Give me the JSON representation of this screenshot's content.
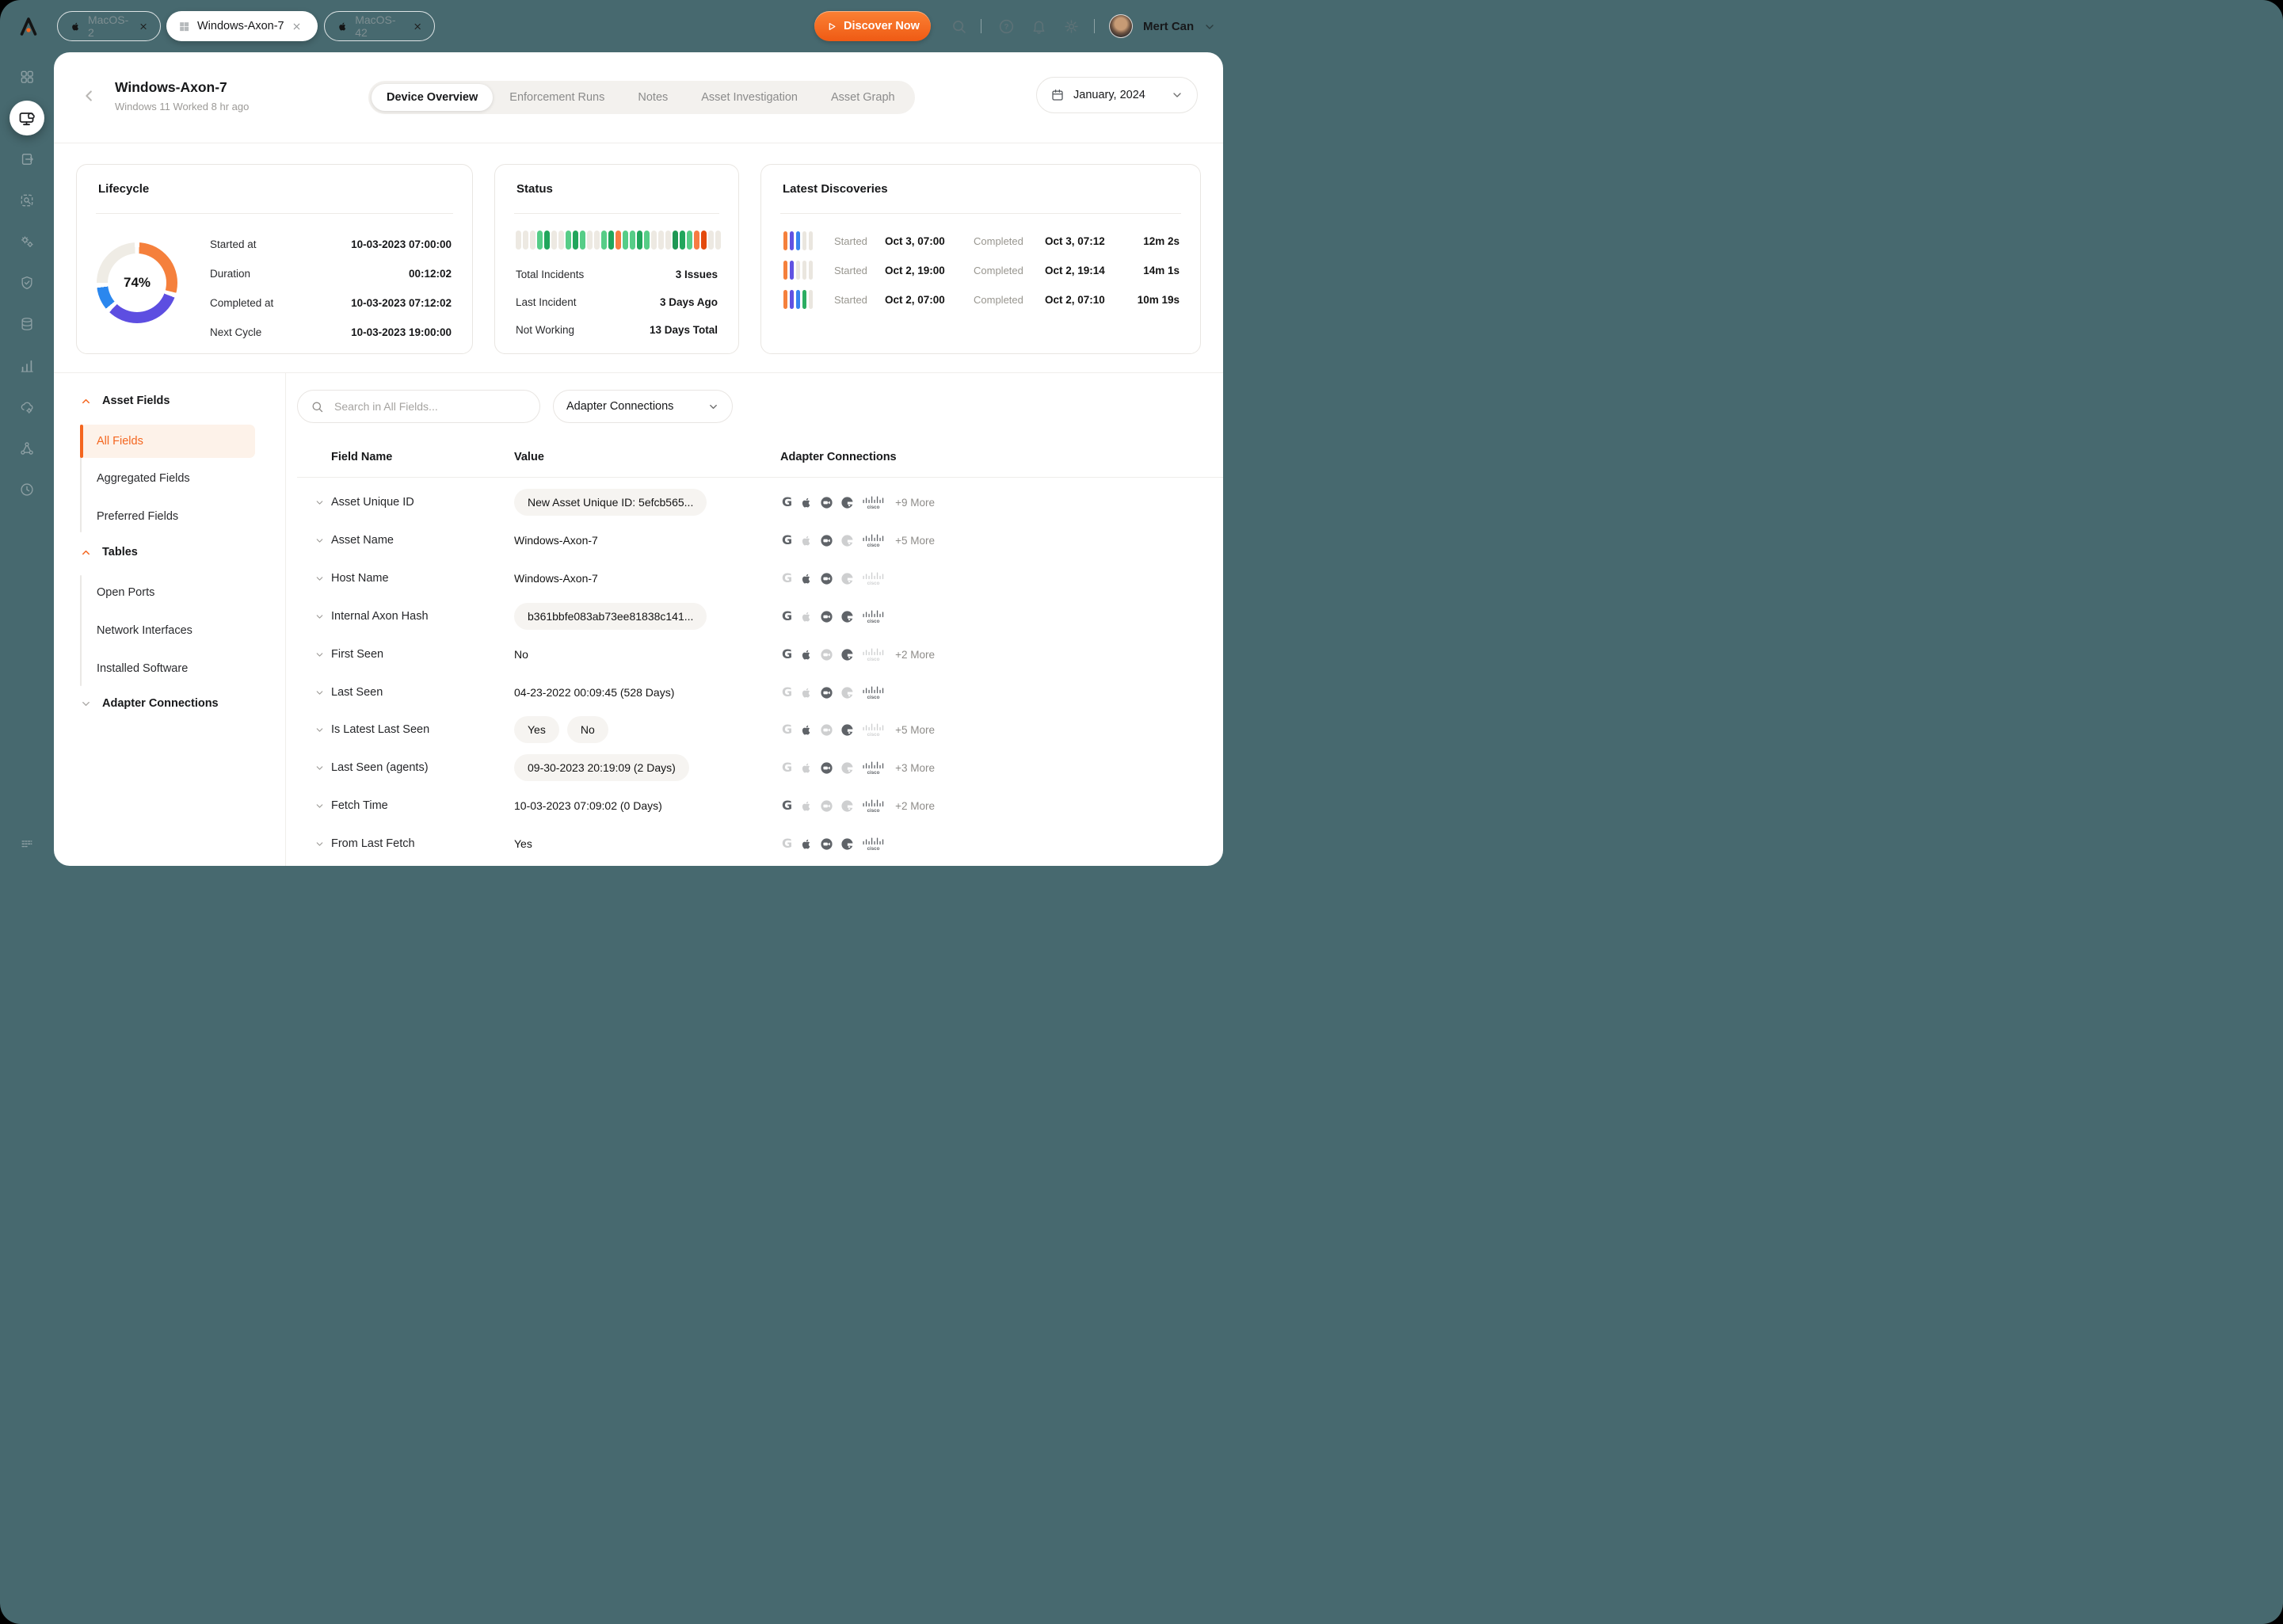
{
  "colors": {
    "accent": "#F4661F",
    "frame_bg": "#47696F",
    "card_bg": "#FFFFFF"
  },
  "topbar": {
    "tabs": [
      {
        "label": "MacOS-2",
        "icon": "apple"
      },
      {
        "label": "Windows-Axon-7",
        "icon": "windows",
        "active": true
      },
      {
        "label": "MacOS-42",
        "icon": "apple"
      }
    ],
    "discover_label": "Discover Now",
    "icons": [
      "search-icon",
      "help-icon",
      "bell-icon",
      "gear-icon"
    ],
    "user_name": "Mert Can"
  },
  "sidebar": {
    "icons": [
      "dashboard-grid",
      "devices-monitor-cloud",
      "enforcement-box-arrow",
      "investigate-box-search",
      "adapters-gears",
      "compliance-shield",
      "data-database",
      "reports-chart",
      "cloud-gear",
      "network-nodes",
      "history-clock",
      "menu-lines"
    ]
  },
  "header": {
    "title": "Windows-Axon-7",
    "subtitle": "Windows 11 Worked 8 hr ago",
    "tabs": [
      {
        "label": "Device Overview",
        "active": true
      },
      {
        "label": "Enforcement Runs"
      },
      {
        "label": "Notes"
      },
      {
        "label": "Asset Investigation"
      },
      {
        "label": "Asset Graph"
      }
    ],
    "date": "January, 2024"
  },
  "cards": {
    "lifecycle": {
      "title": "Lifecycle",
      "percent": "74%",
      "segments": [
        {
          "color": "#F5803C",
          "value": 30
        },
        {
          "color": "#5D4EE1",
          "value": 33
        },
        {
          "color": "#2B87EE",
          "value": 11
        },
        {
          "color": "#EFECE5",
          "value": 26
        }
      ],
      "rows": [
        {
          "label": "Started at",
          "value": "10-03-2023 07:00:00"
        },
        {
          "label": "Duration",
          "value": "00:12:02"
        },
        {
          "label": "Completed at",
          "value": "10-03-2023 07:12:02"
        },
        {
          "label": "Next Cycle",
          "value": "10-03-2023 19:00:00"
        }
      ]
    },
    "status": {
      "title": "Status",
      "palette": {
        "g": "#EDE9E2",
        "lg": "#56CD87",
        "dg": "#21A65C",
        "or": "#F77C43",
        "rd": "#E44A0D",
        "dgd": "#1E9855"
      },
      "bars": [
        "g",
        "g",
        "g",
        "lg",
        "dg",
        "g",
        "g",
        "lg",
        "dg",
        "lg",
        "g",
        "g",
        "lg",
        "dg",
        "or",
        "lg",
        "lg",
        "dg",
        "lg",
        "g",
        "g",
        "g",
        "dgd",
        "dg",
        "lg",
        "or",
        "rd",
        "g",
        "g"
      ],
      "rows": [
        {
          "label": "Total Incidents",
          "value": "3 Issues"
        },
        {
          "label": "Last Incident",
          "value": "3 Days Ago"
        },
        {
          "label": "Not Working",
          "value": "13 Days Total"
        }
      ]
    },
    "discoveries": {
      "title": "Latest Discoveries",
      "started_label": "Started",
      "completed_label": "Completed",
      "palette": {
        "or": "#F5803C",
        "pu": "#6052E2",
        "bl": "#3784EE",
        "gr": "#2BAD62",
        "g": "#EAE6DF"
      },
      "rows": [
        {
          "bars": [
            "or",
            "pu",
            "bl",
            "g",
            "g"
          ],
          "started": "Oct 3, 07:00",
          "completed": "Oct 3, 07:12",
          "duration": "12m 2s"
        },
        {
          "bars": [
            "or",
            "pu",
            "g",
            "g",
            "g"
          ],
          "started": "Oct 2, 19:00",
          "completed": "Oct 2, 19:14",
          "duration": "14m 1s"
        },
        {
          "bars": [
            "or",
            "pu",
            "bl",
            "gr",
            "g"
          ],
          "started": "Oct 2, 07:00",
          "completed": "Oct 2, 07:10",
          "duration": "10m 19s"
        }
      ]
    }
  },
  "panel": {
    "sections": [
      {
        "label": "Asset Fields",
        "state": "expanded",
        "items": [
          {
            "label": "All Fields",
            "active": true
          },
          {
            "label": "Aggregated Fields"
          },
          {
            "label": "Preferred Fields"
          }
        ]
      },
      {
        "label": "Tables",
        "state": "expanded",
        "items": [
          {
            "label": "Open Ports"
          },
          {
            "label": "Network Interfaces"
          },
          {
            "label": "Installed Software"
          }
        ]
      },
      {
        "label": "Adapter Connections",
        "state": "collapsed",
        "items": []
      }
    ]
  },
  "toolbar": {
    "search_placeholder": "Search in All Fields...",
    "filter_label": "Adapter Connections"
  },
  "table": {
    "columns": [
      "Field Name",
      "Value",
      "Adapter Connections"
    ],
    "adapter_names": [
      "google",
      "apple",
      "zoom",
      "adapter-disc",
      "cisco"
    ],
    "rows": [
      {
        "field": "Asset Unique ID",
        "value": "New Asset Unique ID: 5efcb565...",
        "pill": true,
        "adapters": [
          1,
          1,
          1,
          1,
          1
        ],
        "more": "+9 More"
      },
      {
        "field": "Asset Name",
        "value": "Windows-Axon-7",
        "pill": false,
        "adapters": [
          1,
          0,
          1,
          0,
          1
        ],
        "more": "+5 More"
      },
      {
        "field": "Host Name",
        "value": "Windows-Axon-7",
        "pill": false,
        "adapters": [
          0,
          1,
          1,
          0,
          0
        ],
        "more": ""
      },
      {
        "field": "Internal Axon Hash",
        "value": "b361bbfe083ab73ee81838c141...",
        "pill": true,
        "adapters": [
          1,
          0,
          1,
          1,
          1
        ],
        "more": ""
      },
      {
        "field": "First Seen",
        "value": "No",
        "pill": false,
        "adapters": [
          1,
          1,
          0,
          1,
          0
        ],
        "more": "+2 More"
      },
      {
        "field": "Last Seen",
        "value": "04-23-2022 00:09:45 (528 Days)",
        "pill": false,
        "adapters": [
          0,
          0,
          1,
          0,
          1
        ],
        "more": ""
      },
      {
        "field": "Is Latest Last Seen",
        "values": [
          "Yes",
          "No"
        ],
        "pill": true,
        "adapters": [
          0,
          1,
          0,
          1,
          0
        ],
        "more": "+5 More"
      },
      {
        "field": "Last Seen (agents)",
        "value": "09-30-2023 20:19:09 (2 Days)",
        "pill": true,
        "adapters": [
          0,
          0,
          1,
          0,
          1
        ],
        "more": "+3 More"
      },
      {
        "field": "Fetch Time",
        "value": "10-03-2023 07:09:02 (0 Days)",
        "pill": false,
        "adapters": [
          1,
          0,
          0,
          0,
          1
        ],
        "more": "+2 More"
      },
      {
        "field": "From Last Fetch",
        "value": "Yes",
        "pill": false,
        "adapters": [
          0,
          1,
          1,
          1,
          1
        ],
        "more": ""
      }
    ]
  }
}
